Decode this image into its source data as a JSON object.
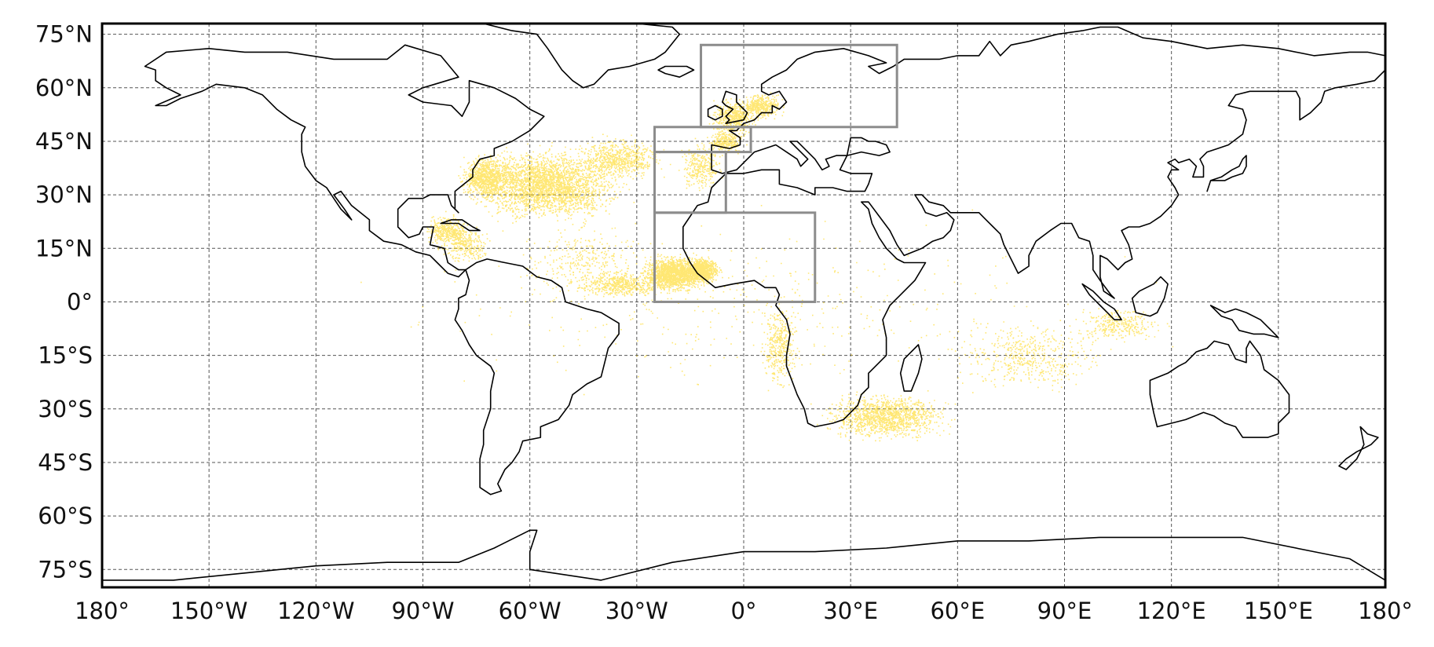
{
  "map": {
    "projection": "equirectangular",
    "extent": {
      "lon": [
        -180,
        180
      ],
      "lat": [
        -80,
        78
      ]
    },
    "grid": true,
    "colors": {
      "points": "#ffd400",
      "coastline": "#000000",
      "region_box": "#8c8c8c",
      "grid": "#555555"
    },
    "lat_ticks": [
      {
        "value": 75,
        "label": "75°N"
      },
      {
        "value": 60,
        "label": "60°N"
      },
      {
        "value": 45,
        "label": "45°N"
      },
      {
        "value": 30,
        "label": "30°N"
      },
      {
        "value": 15,
        "label": "15°N"
      },
      {
        "value": 0,
        "label": "0°"
      },
      {
        "value": -15,
        "label": "15°S"
      },
      {
        "value": -30,
        "label": "30°S"
      },
      {
        "value": -45,
        "label": "45°S"
      },
      {
        "value": -60,
        "label": "60°S"
      },
      {
        "value": -75,
        "label": "75°S"
      }
    ],
    "lon_ticks": [
      {
        "value": -180,
        "label": "180°"
      },
      {
        "value": -150,
        "label": "150°W"
      },
      {
        "value": -120,
        "label": "120°W"
      },
      {
        "value": -90,
        "label": "90°W"
      },
      {
        "value": -60,
        "label": "60°W"
      },
      {
        "value": -30,
        "label": "30°W"
      },
      {
        "value": 0,
        "label": "0°"
      },
      {
        "value": 30,
        "label": "30°E"
      },
      {
        "value": 60,
        "label": "60°E"
      },
      {
        "value": 90,
        "label": "90°E"
      },
      {
        "value": 120,
        "label": "120°E"
      },
      {
        "value": 150,
        "label": "150°E"
      },
      {
        "value": 180,
        "label": "180°"
      }
    ],
    "regions": [
      {
        "lon": [
          -12,
          43
        ],
        "lat": [
          49,
          72
        ]
      },
      {
        "lon": [
          -25,
          2
        ],
        "lat": [
          42,
          49
        ]
      },
      {
        "lon": [
          -25,
          -5
        ],
        "lat": [
          25,
          42
        ]
      },
      {
        "lon": [
          -25,
          20
        ],
        "lat": [
          0,
          25
        ]
      }
    ]
  }
}
